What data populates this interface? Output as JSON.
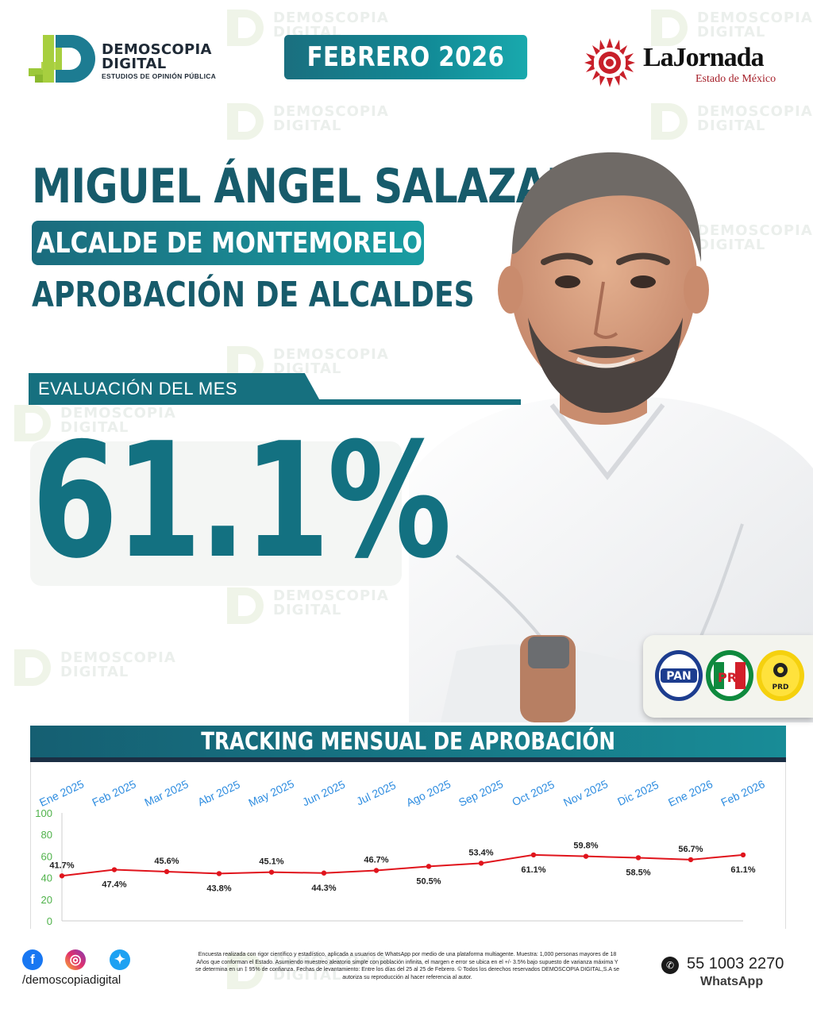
{
  "brand": {
    "name_line1": "DEMOSCOPIA",
    "name_line2": "DIGITAL",
    "tagline": "ESTUDIOS DE OPINIÓN PÚBLICA",
    "accent_color": "#137181",
    "green_color": "#9cc83a"
  },
  "header": {
    "month": "FEBRERO 2026"
  },
  "partner": {
    "name": "LaJornada",
    "subtitle": "Estado de México"
  },
  "headline": {
    "name": "MIGUEL ÁNGEL SALAZAR",
    "role": "ALCALDE DE MONTEMORELOS",
    "subtitle": "APROBACIÓN DE ALCALDES"
  },
  "evaluation": {
    "label": "EVALUACIÓN DEL MES",
    "value": "61.1%"
  },
  "parties": [
    {
      "name": "PAN",
      "icon": "pan-logo"
    },
    {
      "name": "PRI",
      "icon": "pri-logo"
    },
    {
      "name": "PRD",
      "icon": "prd-logo"
    }
  ],
  "chart_data": {
    "type": "line",
    "title": "TRACKING MENSUAL DE APROBACIÓN",
    "categories": [
      "Ene 2025",
      "Feb 2025",
      "Mar 2025",
      "Abr 2025",
      "May 2025",
      "Jun 2025",
      "Jul 2025",
      "Ago 2025",
      "Sep 2025",
      "Oct 2025",
      "Nov 2025",
      "Dic 2025",
      "Ene 2026",
      "Feb 2026"
    ],
    "series": [
      {
        "values": [
          41.7,
          47.4,
          45.6,
          43.8,
          45.1,
          44.3,
          46.7,
          50.5,
          53.4,
          61.1,
          59.8,
          58.5,
          56.7,
          61.1
        ],
        "color": "#e0141c"
      }
    ],
    "data_labels": [
      "41.7%",
      "47.4%",
      "45.6%",
      "43.8%",
      "45.1%",
      "44.3%",
      "46.7%",
      "50.5%",
      "53.4%",
      "61.1%",
      "59.8%",
      "58.5%",
      "56.7%",
      "61.1%"
    ],
    "y_ticks": [
      "0",
      "20",
      "40",
      "60",
      "80",
      "100"
    ],
    "ylim": [
      0,
      100
    ],
    "grid": false,
    "legend": "none"
  },
  "footer": {
    "handle": "/demoscopiadigital",
    "disclaimer": "Encuesta realizada con rigor científico y estadístico, aplicada a usuarios de WhatsApp por medio de una plataforma multiagente. Muestra: 1,000 personas mayores de 18 Años que conforman el Estado. Asumiendo muestreo aleatorio simple con población infinita, el margen e error se ubica en el +/- 3.5% bajo supuesto de varianza máxima Y se determina en un ‡ 95% de confianza. Fechas de levantamiento: Entre los días del 25 al 25 de Febrero. © Todos los derechos reservados DEMOSCOPIA DIGITAL,S.A se autoriza su reproducción al hacer referencia al autor.",
    "whatsapp_number": "55 1003 2270",
    "whatsapp_label": "WhatsApp",
    "social_icons": [
      "facebook-icon",
      "instagram-icon",
      "twitter-icon"
    ]
  }
}
